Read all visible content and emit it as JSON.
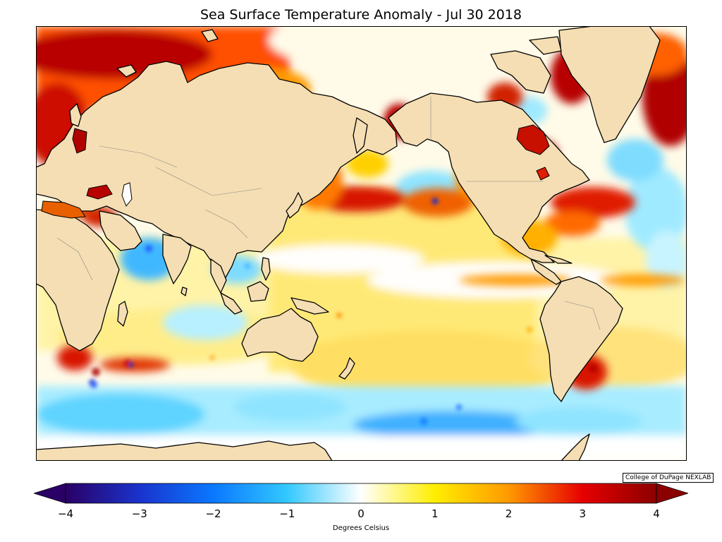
{
  "title": "Sea Surface Temperature Anomaly - Jul 30 2018",
  "credit": "College of DuPage NEXLAB",
  "colorbar": {
    "label": "Degrees Celsius",
    "ticks": [
      "−4",
      "−3",
      "−2",
      "−1",
      "0",
      "1",
      "2",
      "3",
      "4"
    ],
    "range": [
      -4,
      4
    ],
    "extend": "both",
    "stops": [
      "#2a0066",
      "#1a33cc",
      "#0a78ff",
      "#33c8ff",
      "#ffffff",
      "#ffee00",
      "#ff9900",
      "#e60000",
      "#8b0000"
    ]
  },
  "colors": {
    "land": "#f5deb3",
    "coast": "#000000",
    "borders": "#888888",
    "ocean_neutral": "#fff8d6"
  }
}
